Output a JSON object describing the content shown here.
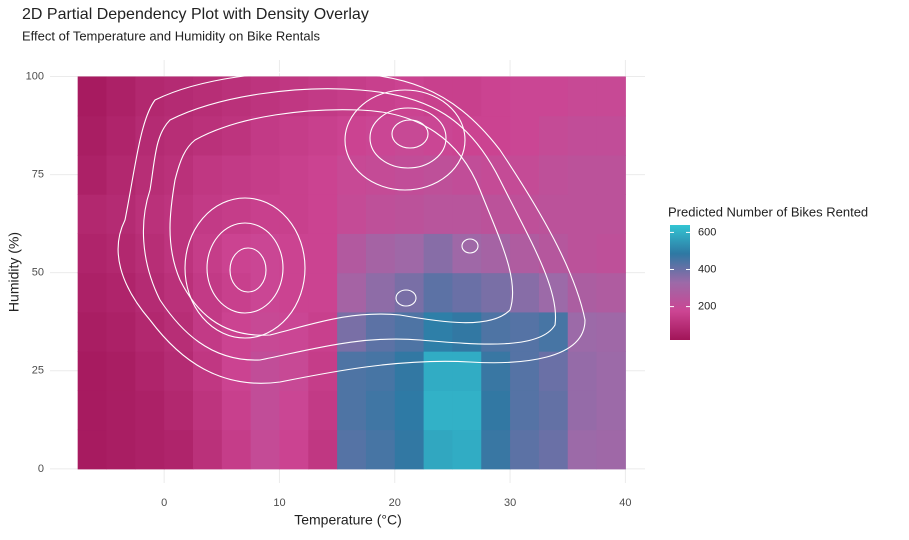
{
  "chart_data": {
    "type": "heatmap",
    "title": "2D Partial Dependency Plot with Density Overlay",
    "subtitle": "Effect of Temperature and Humidity on Bike Rentals",
    "x_label": "Temperature (°C)",
    "y_label": "Humidity (%)",
    "x_bins": [
      -7.5,
      -5,
      -2.5,
      0,
      2.5,
      5,
      7.5,
      10,
      12.5,
      15,
      17.5,
      20,
      22.5,
      25,
      27.5,
      30,
      32.5,
      35,
      37.5,
      40
    ],
    "y_bins": [
      0,
      10,
      20,
      30,
      40,
      50,
      60,
      70,
      80,
      90,
      100
    ],
    "values": [
      [
        40,
        50,
        60,
        70,
        110,
        150,
        200,
        170,
        130,
        430,
        450,
        480,
        580,
        590,
        470,
        420,
        400,
        330,
        320
      ],
      [
        40,
        50,
        60,
        80,
        120,
        160,
        210,
        180,
        140,
        440,
        460,
        490,
        600,
        600,
        480,
        430,
        410,
        340,
        330
      ],
      [
        40,
        50,
        70,
        90,
        130,
        170,
        210,
        190,
        150,
        440,
        450,
        480,
        590,
        590,
        470,
        430,
        400,
        340,
        330
      ],
      [
        50,
        60,
        80,
        100,
        140,
        170,
        190,
        180,
        160,
        380,
        420,
        440,
        500,
        480,
        440,
        430,
        450,
        330,
        320
      ],
      [
        60,
        70,
        90,
        110,
        140,
        160,
        180,
        170,
        170,
        300,
        350,
        380,
        420,
        400,
        380,
        360,
        330,
        280,
        270
      ],
      [
        70,
        80,
        100,
        120,
        150,
        170,
        180,
        170,
        170,
        260,
        300,
        320,
        360,
        320,
        300,
        270,
        250,
        230,
        220
      ],
      [
        80,
        90,
        110,
        120,
        140,
        150,
        160,
        160,
        170,
        200,
        220,
        230,
        240,
        240,
        230,
        220,
        230,
        230,
        230
      ],
      [
        60,
        80,
        100,
        110,
        130,
        140,
        150,
        160,
        170,
        190,
        200,
        210,
        220,
        210,
        200,
        200,
        220,
        230,
        230
      ],
      [
        50,
        70,
        90,
        100,
        110,
        120,
        140,
        150,
        160,
        170,
        180,
        190,
        180,
        170,
        170,
        180,
        200,
        210,
        210
      ],
      [
        40,
        60,
        80,
        90,
        100,
        110,
        120,
        130,
        140,
        150,
        160,
        170,
        160,
        160,
        170,
        180,
        180,
        190,
        190
      ]
    ],
    "xlim": [
      -9.9,
      41.7
    ],
    "ylim": [
      -3.6,
      104.2
    ],
    "xticks": [
      0,
      10,
      20,
      30,
      40
    ],
    "yticks": [
      0,
      25,
      50,
      75,
      100
    ],
    "grid": true,
    "legend": {
      "title": "Predicted Number of Bikes Rented",
      "limits": [
        20,
        640
      ],
      "ticks": [
        200,
        400,
        600
      ],
      "colors": [
        "#a11558",
        "#cc4593",
        "#9c6aa8",
        "#2e78a3",
        "#33c5d3"
      ]
    }
  }
}
